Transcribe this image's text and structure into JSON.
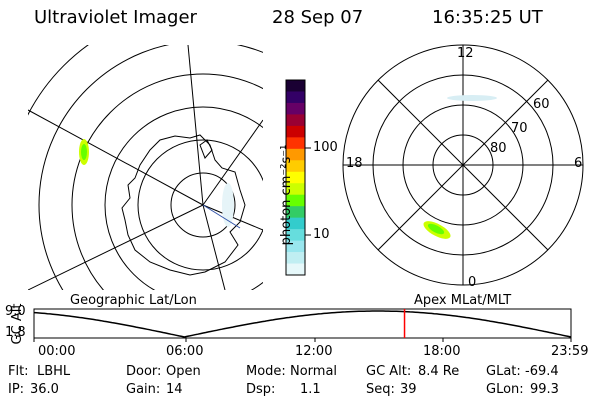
{
  "header": {
    "title": "Ultraviolet Imager",
    "date": "28 Sep 07",
    "time": "16:35:25 UT"
  },
  "geographic_panel": {
    "label": "Geographic Lat/Lon"
  },
  "apex_panel": {
    "label": "Apex MLat/MLT",
    "mlt_labels": {
      "top": "12",
      "bottom": "0",
      "left": "18",
      "right": "6"
    },
    "lat_labels": [
      "60",
      "70",
      "80"
    ]
  },
  "colorbar": {
    "unit_label": "photon cm⁻²s⁻¹",
    "ticks": [
      "100",
      "10"
    ],
    "colors": [
      "#1a0033",
      "#330066",
      "#660066",
      "#990033",
      "#cc0000",
      "#ff3300",
      "#ff9900",
      "#ffcc00",
      "#ffff00",
      "#ccff00",
      "#66ff00",
      "#33cc66",
      "#33cccc",
      "#66dddd",
      "#99e6ee",
      "#c0eef2",
      "#e6f8fa"
    ]
  },
  "altitude_plot": {
    "ylabel": "GC Alt",
    "y_ticks": [
      "9.0",
      "1.8"
    ],
    "x_ticks": [
      "00:00",
      "06:00",
      "12:00",
      "18:00",
      "23:59"
    ],
    "current_time_fraction": 0.69,
    "marker_color": "#ff0000"
  },
  "status": {
    "row1": [
      {
        "label": "Flt:",
        "value": "LBHL"
      },
      {
        "label": "Door:",
        "value": "Open"
      },
      {
        "label": "Mode:",
        "value": "Normal"
      },
      {
        "label": "GC Alt:",
        "value": "8.4 Re"
      },
      {
        "label": "GLat:",
        "value": "-69.4"
      }
    ],
    "row2": [
      {
        "label": "IP:",
        "value": "36.0"
      },
      {
        "label": "Gain:",
        "value": "14"
      },
      {
        "label": "Dsp:",
        "value": "1.1"
      },
      {
        "label": "Seq:",
        "value": "39"
      },
      {
        "label": "GLon:",
        "value": "99.3"
      }
    ]
  }
}
